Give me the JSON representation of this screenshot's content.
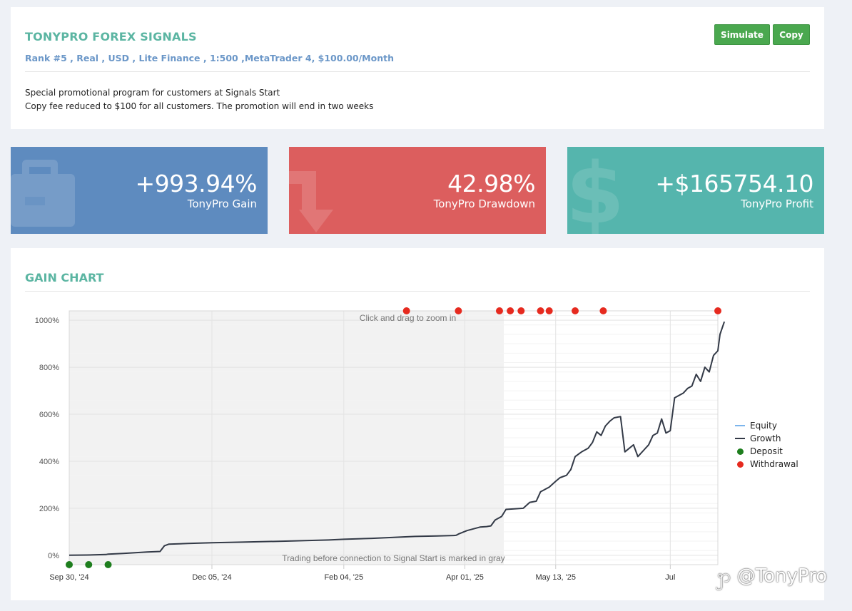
{
  "header": {
    "title": "TONYPRO FOREX SIGNALS",
    "subtitle": "Rank #5 , Real , USD , Lite Finance , 1:500 ,MetaTrader 4, $100.00/Month",
    "simulate_label": "Simulate",
    "copy_label": "Copy",
    "promo_line1": "Special promotional program for customers at Signals Start",
    "promo_line2": "Copy fee reduced to $100 for all customers. The promotion will end in two weeks"
  },
  "stats": {
    "gain": {
      "value": "+993.94%",
      "label": "TonyPro Gain",
      "icon": "briefcase-icon"
    },
    "drawdown": {
      "value": "42.98%",
      "label": "TonyPro Drawdown",
      "icon": "arrow-down-icon"
    },
    "profit": {
      "value": "+$165754.10",
      "label": "TonyPro Profit",
      "icon": "dollar-icon"
    }
  },
  "gain_chart": {
    "section_title": "GAIN CHART",
    "zoom_hint": "Click and drag to zoom in",
    "gray_note": "Trading before connection to Signal Start is marked in gray"
  },
  "chart_data": {
    "type": "line",
    "ylim": [
      -40,
      1040
    ],
    "yticks": [
      0,
      200,
      400,
      600,
      800,
      1000
    ],
    "ytick_labels": [
      "0%",
      "200%",
      "400%",
      "600%",
      "800%",
      "1000%"
    ],
    "xlim": [
      0,
      300
    ],
    "xticks": [
      0,
      66,
      127,
      183,
      225,
      278
    ],
    "xtick_labels": [
      "Sep 30, '24",
      "Dec 05, '24",
      "Feb 04, '25",
      "Apr 01, '25",
      "May 13, '25",
      "Jul"
    ],
    "gray_region": [
      0,
      201
    ],
    "legend_position": "right",
    "series": [
      {
        "name": "Equity",
        "color": "#7cb5ec",
        "values": []
      },
      {
        "name": "Growth",
        "color": "#333a47",
        "points": [
          [
            0,
            0
          ],
          [
            8,
            1
          ],
          [
            17,
            3
          ],
          [
            18,
            5
          ],
          [
            25,
            8
          ],
          [
            36,
            14
          ],
          [
            42,
            16
          ],
          [
            44,
            40
          ],
          [
            46,
            47
          ],
          [
            55,
            50
          ],
          [
            66,
            53
          ],
          [
            80,
            56
          ],
          [
            100,
            60
          ],
          [
            120,
            65
          ],
          [
            127,
            68
          ],
          [
            140,
            72
          ],
          [
            150,
            76
          ],
          [
            160,
            80
          ],
          [
            170,
            82
          ],
          [
            178,
            84
          ],
          [
            179,
            85
          ],
          [
            180,
            90
          ],
          [
            184,
            105
          ],
          [
            190,
            120
          ],
          [
            193,
            122
          ],
          [
            195,
            125
          ],
          [
            197,
            150
          ],
          [
            200,
            165
          ],
          [
            202,
            195
          ],
          [
            207,
            198
          ],
          [
            210,
            200
          ],
          [
            213,
            225
          ],
          [
            216,
            230
          ],
          [
            218,
            270
          ],
          [
            220,
            280
          ],
          [
            222,
            290
          ],
          [
            225,
            315
          ],
          [
            227,
            330
          ],
          [
            230,
            340
          ],
          [
            232,
            365
          ],
          [
            234,
            420
          ],
          [
            237,
            440
          ],
          [
            240,
            455
          ],
          [
            242,
            480
          ],
          [
            244,
            525
          ],
          [
            246,
            510
          ],
          [
            248,
            550
          ],
          [
            250,
            570
          ],
          [
            252,
            585
          ],
          [
            255,
            590
          ],
          [
            257,
            440
          ],
          [
            259,
            455
          ],
          [
            261,
            470
          ],
          [
            263,
            420
          ],
          [
            266,
            450
          ],
          [
            268,
            470
          ],
          [
            270,
            510
          ],
          [
            272,
            520
          ],
          [
            274,
            580
          ],
          [
            276,
            520
          ],
          [
            278,
            530
          ],
          [
            280,
            670
          ],
          [
            284,
            690
          ],
          [
            286,
            710
          ],
          [
            288,
            720
          ],
          [
            290,
            770
          ],
          [
            292,
            740
          ],
          [
            294,
            800
          ],
          [
            296,
            780
          ],
          [
            298,
            850
          ],
          [
            300,
            870
          ],
          [
            301,
            940
          ],
          [
            303,
            994
          ]
        ]
      },
      {
        "name": "Deposit",
        "color": "#1e7e1e",
        "x": [
          0,
          9,
          18
        ]
      },
      {
        "name": "Withdrawal",
        "color": "#e62a1f",
        "x": [
          156,
          180,
          199,
          204,
          209,
          218,
          222,
          234,
          247,
          300
        ]
      }
    ]
  }
}
